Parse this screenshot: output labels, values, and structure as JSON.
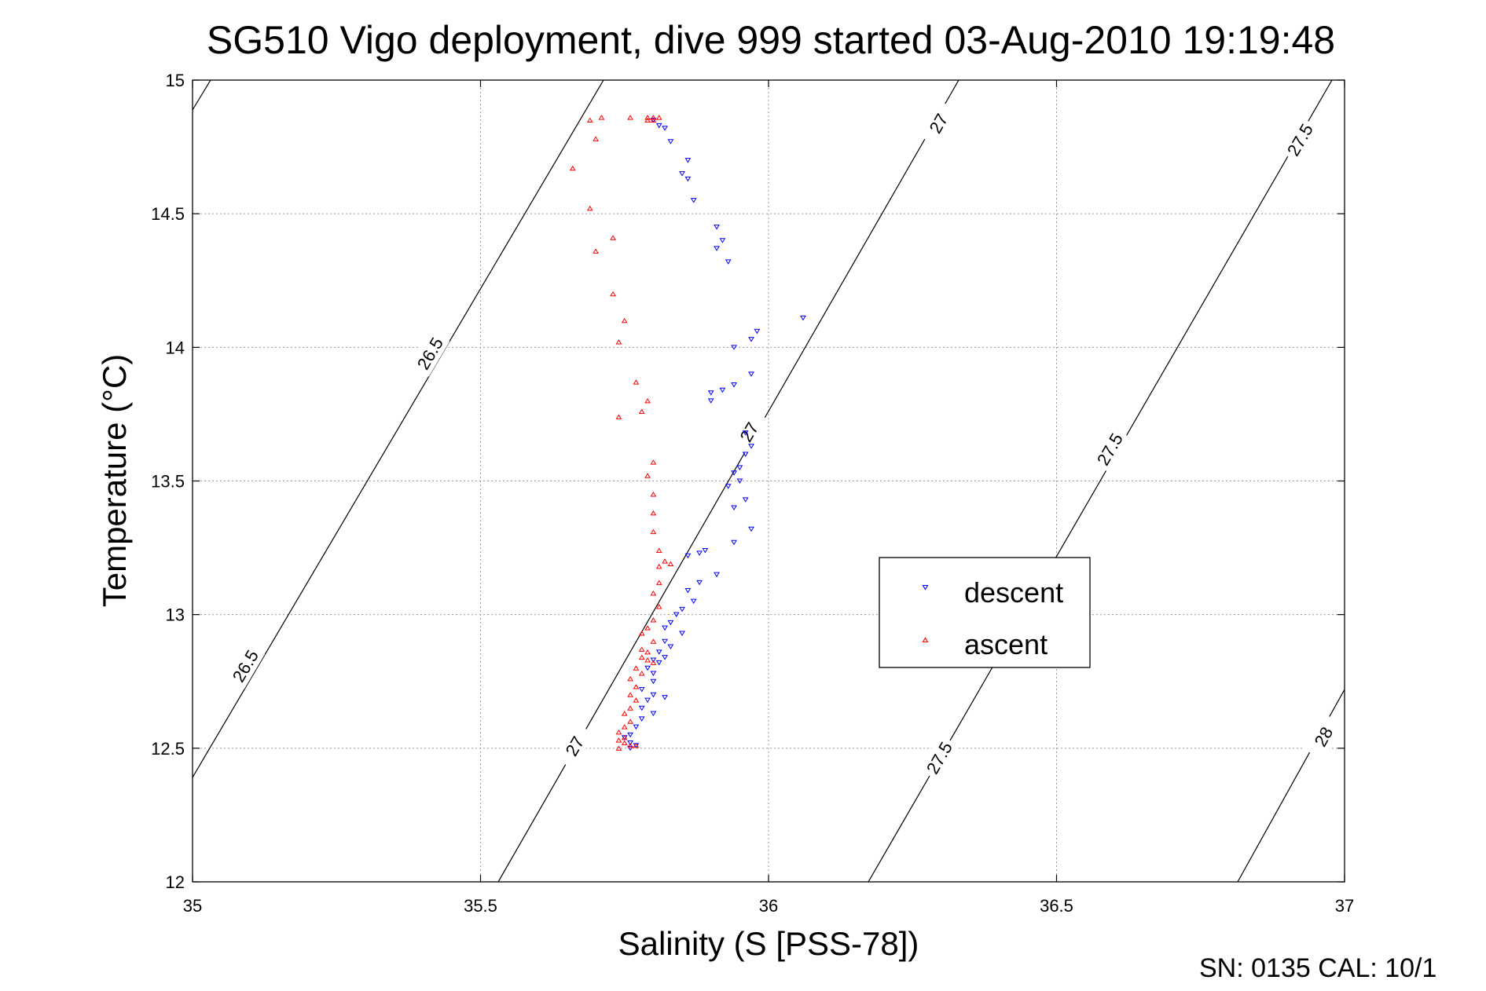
{
  "chart_data": {
    "type": "scatter",
    "title": "SG510 Vigo deployment, dive 999 started 03-Aug-2010 19:19:48",
    "xlabel": "Salinity (S [PSS-78])",
    "ylabel": "Temperature (°C)",
    "xlim": [
      35,
      37
    ],
    "ylim": [
      12,
      15
    ],
    "xticks": [
      "35",
      "35.5",
      "36",
      "36.5",
      "37"
    ],
    "yticks": [
      "12",
      "12.5",
      "13",
      "13.5",
      "14",
      "14.5",
      "15"
    ],
    "grid": true,
    "legend_position": "center-right",
    "density_contours": [
      {
        "value": 26.5,
        "labels": [
          "26.5",
          "26.5"
        ]
      },
      {
        "value": 27,
        "labels": [
          "27",
          "27",
          "27"
        ]
      },
      {
        "value": 27.5,
        "labels": [
          "27.5",
          "27.5",
          "27.5"
        ]
      },
      {
        "value": 28,
        "labels": [
          "28"
        ]
      }
    ],
    "series": [
      {
        "name": "descent",
        "color": "#0000ff",
        "marker": "triangle-down",
        "points": [
          [
            35.8,
            14.85
          ],
          [
            35.81,
            14.83
          ],
          [
            35.82,
            14.82
          ],
          [
            35.83,
            14.77
          ],
          [
            35.86,
            14.7
          ],
          [
            35.85,
            14.65
          ],
          [
            35.86,
            14.63
          ],
          [
            35.87,
            14.55
          ],
          [
            35.91,
            14.45
          ],
          [
            35.92,
            14.4
          ],
          [
            35.91,
            14.37
          ],
          [
            35.93,
            14.32
          ],
          [
            36.06,
            14.11
          ],
          [
            35.98,
            14.06
          ],
          [
            35.97,
            14.03
          ],
          [
            35.94,
            14.0
          ],
          [
            35.97,
            13.9
          ],
          [
            35.94,
            13.86
          ],
          [
            35.92,
            13.84
          ],
          [
            35.9,
            13.83
          ],
          [
            35.9,
            13.8
          ],
          [
            35.96,
            13.68
          ],
          [
            35.97,
            13.63
          ],
          [
            35.96,
            13.6
          ],
          [
            35.95,
            13.55
          ],
          [
            35.94,
            13.53
          ],
          [
            35.95,
            13.5
          ],
          [
            35.93,
            13.48
          ],
          [
            35.96,
            13.43
          ],
          [
            35.94,
            13.4
          ],
          [
            35.97,
            13.32
          ],
          [
            35.94,
            13.27
          ],
          [
            35.89,
            13.24
          ],
          [
            35.88,
            13.23
          ],
          [
            35.86,
            13.22
          ],
          [
            35.91,
            13.15
          ],
          [
            35.88,
            13.12
          ],
          [
            35.86,
            13.09
          ],
          [
            35.87,
            13.05
          ],
          [
            35.85,
            13.02
          ],
          [
            35.84,
            13.0
          ],
          [
            35.83,
            12.97
          ],
          [
            35.82,
            12.95
          ],
          [
            35.85,
            12.93
          ],
          [
            35.82,
            12.9
          ],
          [
            35.83,
            12.88
          ],
          [
            35.81,
            12.86
          ],
          [
            35.82,
            12.84
          ],
          [
            35.8,
            12.83
          ],
          [
            35.81,
            12.82
          ],
          [
            35.79,
            12.8
          ],
          [
            35.8,
            12.78
          ],
          [
            35.8,
            12.75
          ],
          [
            35.78,
            12.72
          ],
          [
            35.8,
            12.7
          ],
          [
            35.82,
            12.69
          ],
          [
            35.79,
            12.68
          ],
          [
            35.78,
            12.65
          ],
          [
            35.8,
            12.63
          ],
          [
            35.78,
            12.61
          ],
          [
            35.77,
            12.58
          ],
          [
            35.76,
            12.55
          ],
          [
            35.75,
            12.54
          ],
          [
            35.76,
            12.52
          ],
          [
            35.77,
            12.51
          ],
          [
            35.76,
            12.5
          ]
        ]
      },
      {
        "name": "ascent",
        "color": "#ff0000",
        "marker": "triangle-up",
        "points": [
          [
            35.79,
            14.86
          ],
          [
            35.8,
            14.86
          ],
          [
            35.81,
            14.86
          ],
          [
            35.79,
            14.85
          ],
          [
            35.8,
            14.85
          ],
          [
            35.76,
            14.86
          ],
          [
            35.69,
            14.85
          ],
          [
            35.71,
            14.86
          ],
          [
            35.7,
            14.78
          ],
          [
            35.66,
            14.67
          ],
          [
            35.69,
            14.52
          ],
          [
            35.73,
            14.41
          ],
          [
            35.7,
            14.36
          ],
          [
            35.73,
            14.2
          ],
          [
            35.75,
            14.1
          ],
          [
            35.74,
            14.02
          ],
          [
            35.77,
            13.87
          ],
          [
            35.79,
            13.8
          ],
          [
            35.78,
            13.76
          ],
          [
            35.74,
            13.74
          ],
          [
            35.8,
            13.57
          ],
          [
            35.79,
            13.52
          ],
          [
            35.8,
            13.45
          ],
          [
            35.8,
            13.38
          ],
          [
            35.8,
            13.31
          ],
          [
            35.81,
            13.24
          ],
          [
            35.82,
            13.2
          ],
          [
            35.81,
            13.18
          ],
          [
            35.83,
            13.19
          ],
          [
            35.81,
            13.12
          ],
          [
            35.8,
            13.08
          ],
          [
            35.81,
            13.03
          ],
          [
            35.8,
            12.98
          ],
          [
            35.79,
            12.95
          ],
          [
            35.78,
            12.93
          ],
          [
            35.8,
            12.9
          ],
          [
            35.78,
            12.87
          ],
          [
            35.79,
            12.86
          ],
          [
            35.78,
            12.84
          ],
          [
            35.79,
            12.83
          ],
          [
            35.8,
            12.82
          ],
          [
            35.77,
            12.8
          ],
          [
            35.78,
            12.78
          ],
          [
            35.76,
            12.76
          ],
          [
            35.77,
            12.73
          ],
          [
            35.76,
            12.7
          ],
          [
            35.77,
            12.68
          ],
          [
            35.76,
            12.65
          ],
          [
            35.75,
            12.63
          ],
          [
            35.76,
            12.6
          ],
          [
            35.75,
            12.58
          ],
          [
            35.74,
            12.56
          ],
          [
            35.75,
            12.54
          ],
          [
            35.74,
            12.53
          ],
          [
            35.75,
            12.52
          ],
          [
            35.76,
            12.51
          ],
          [
            35.77,
            12.51
          ],
          [
            35.74,
            12.5
          ]
        ]
      }
    ]
  },
  "footer": {
    "text": "SN: 0135  CAL: 10/1"
  }
}
